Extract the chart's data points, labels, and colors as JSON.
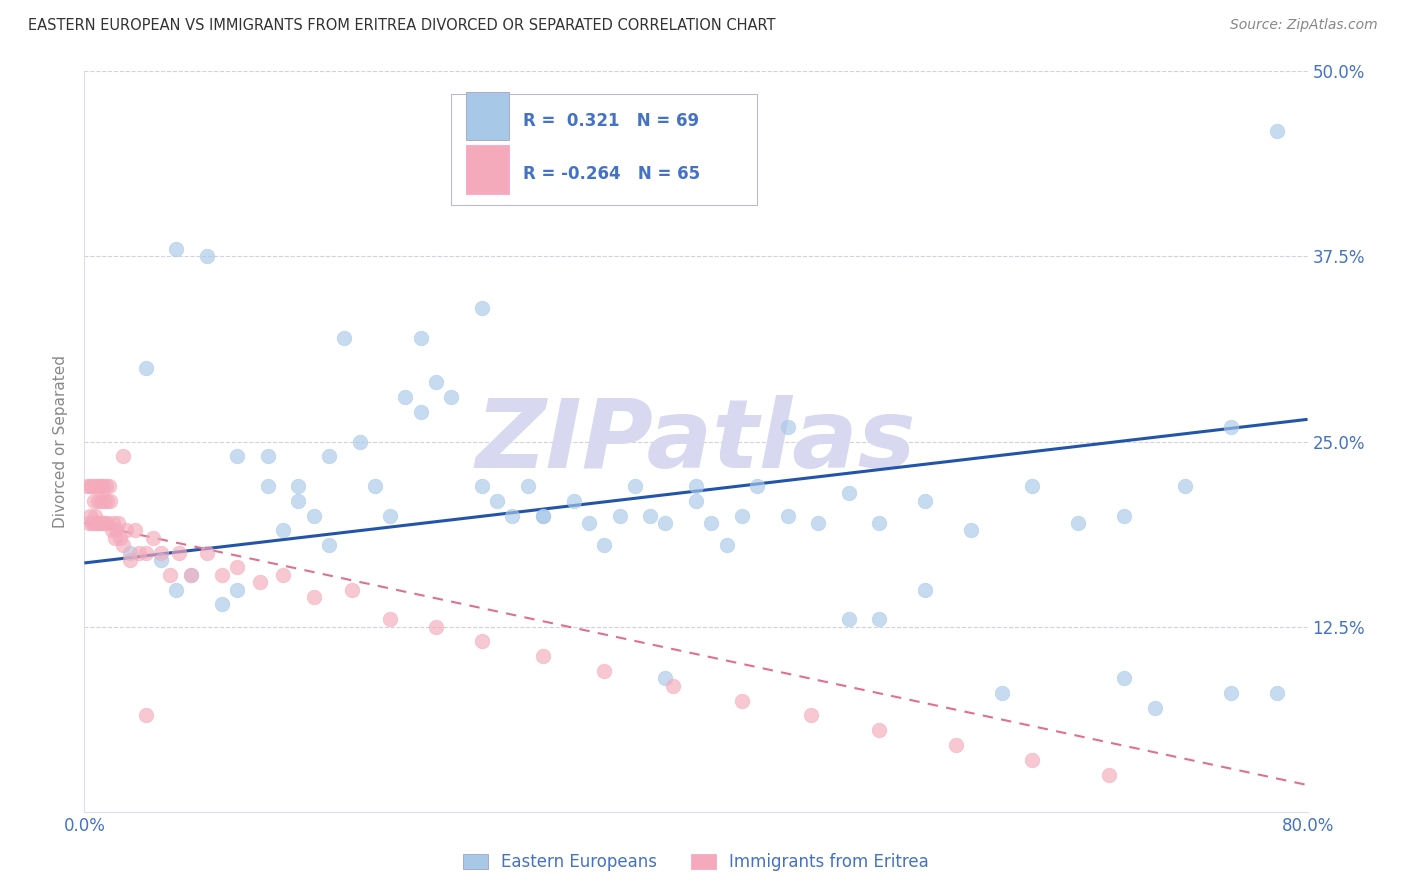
{
  "title": "EASTERN EUROPEAN VS IMMIGRANTS FROM ERITREA DIVORCED OR SEPARATED CORRELATION CHART",
  "source": "Source: ZipAtlas.com",
  "ylabel": "Divorced or Separated",
  "r_blue": 0.321,
  "n_blue": 69,
  "r_pink": -0.264,
  "n_pink": 65,
  "xlim": [
    0.0,
    0.8
  ],
  "ylim": [
    0.0,
    0.5
  ],
  "xtick_vals": [
    0.0,
    0.2,
    0.4,
    0.6,
    0.8
  ],
  "xtick_labels": [
    "0.0%",
    "",
    "",
    "",
    "80.0%"
  ],
  "ytick_vals": [
    0.125,
    0.25,
    0.375,
    0.5
  ],
  "ytick_labels": [
    "12.5%",
    "25.0%",
    "37.5%",
    "50.0%"
  ],
  "blue_scatter_color": "#A8C8E8",
  "pink_scatter_color": "#F4AABB",
  "trend_blue_color": "#2255AA",
  "trend_pink_color": "#E07090",
  "watermark_color": "#D8D8F0",
  "axis_label_color": "#4472C4",
  "ylabel_color": "#888888",
  "title_color": "#333333",
  "source_color": "#888888",
  "grid_color": "#CCCCDD",
  "blue_x": [
    0.03,
    0.05,
    0.06,
    0.07,
    0.09,
    0.1,
    0.12,
    0.13,
    0.14,
    0.15,
    0.16,
    0.17,
    0.19,
    0.2,
    0.21,
    0.22,
    0.23,
    0.24,
    0.26,
    0.27,
    0.28,
    0.29,
    0.3,
    0.32,
    0.33,
    0.34,
    0.36,
    0.37,
    0.38,
    0.4,
    0.41,
    0.43,
    0.44,
    0.46,
    0.48,
    0.5,
    0.52,
    0.55,
    0.58,
    0.62,
    0.65,
    0.68,
    0.72,
    0.75,
    0.78,
    0.04,
    0.06,
    0.08,
    0.1,
    0.12,
    0.14,
    0.16,
    0.18,
    0.22,
    0.26,
    0.3,
    0.35,
    0.4,
    0.46,
    0.52,
    0.6,
    0.68,
    0.75,
    0.78,
    0.5,
    0.42,
    0.38,
    0.55,
    0.7
  ],
  "blue_y": [
    0.175,
    0.17,
    0.15,
    0.16,
    0.14,
    0.15,
    0.22,
    0.19,
    0.21,
    0.2,
    0.18,
    0.32,
    0.22,
    0.2,
    0.28,
    0.27,
    0.29,
    0.28,
    0.22,
    0.21,
    0.2,
    0.22,
    0.2,
    0.21,
    0.195,
    0.18,
    0.22,
    0.2,
    0.195,
    0.21,
    0.195,
    0.2,
    0.22,
    0.2,
    0.195,
    0.215,
    0.195,
    0.21,
    0.19,
    0.22,
    0.195,
    0.2,
    0.22,
    0.26,
    0.08,
    0.3,
    0.38,
    0.375,
    0.24,
    0.24,
    0.22,
    0.24,
    0.25,
    0.32,
    0.34,
    0.2,
    0.2,
    0.22,
    0.26,
    0.13,
    0.08,
    0.09,
    0.08,
    0.46,
    0.13,
    0.18,
    0.09,
    0.15,
    0.07
  ],
  "pink_x": [
    0.002,
    0.003,
    0.004,
    0.004,
    0.005,
    0.005,
    0.006,
    0.006,
    0.007,
    0.007,
    0.008,
    0.008,
    0.009,
    0.009,
    0.01,
    0.01,
    0.011,
    0.011,
    0.012,
    0.012,
    0.013,
    0.013,
    0.014,
    0.015,
    0.015,
    0.016,
    0.017,
    0.018,
    0.019,
    0.02,
    0.021,
    0.022,
    0.023,
    0.025,
    0.027,
    0.03,
    0.033,
    0.036,
    0.04,
    0.045,
    0.05,
    0.056,
    0.062,
    0.07,
    0.08,
    0.09,
    0.1,
    0.115,
    0.13,
    0.15,
    0.175,
    0.2,
    0.23,
    0.26,
    0.3,
    0.34,
    0.385,
    0.43,
    0.475,
    0.52,
    0.57,
    0.62,
    0.67,
    0.025,
    0.04
  ],
  "pink_y": [
    0.22,
    0.195,
    0.22,
    0.2,
    0.195,
    0.22,
    0.21,
    0.195,
    0.22,
    0.2,
    0.195,
    0.22,
    0.21,
    0.195,
    0.22,
    0.195,
    0.21,
    0.22,
    0.195,
    0.22,
    0.21,
    0.195,
    0.22,
    0.21,
    0.195,
    0.22,
    0.21,
    0.19,
    0.195,
    0.185,
    0.19,
    0.195,
    0.185,
    0.18,
    0.19,
    0.17,
    0.19,
    0.175,
    0.175,
    0.185,
    0.175,
    0.16,
    0.175,
    0.16,
    0.175,
    0.16,
    0.165,
    0.155,
    0.16,
    0.145,
    0.15,
    0.13,
    0.125,
    0.115,
    0.105,
    0.095,
    0.085,
    0.075,
    0.065,
    0.055,
    0.045,
    0.035,
    0.025,
    0.24,
    0.065
  ],
  "blue_trend_x": [
    0.0,
    0.8
  ],
  "blue_trend_y": [
    0.168,
    0.265
  ],
  "pink_trend_x": [
    0.0,
    0.8
  ],
  "pink_trend_y": [
    0.195,
    0.018
  ]
}
